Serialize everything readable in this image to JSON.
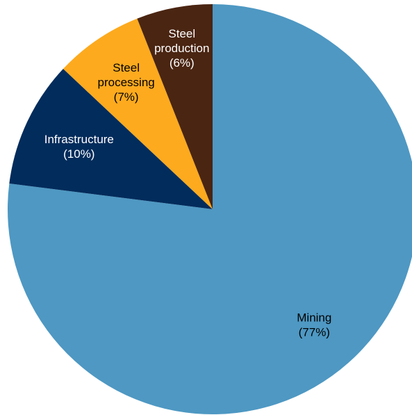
{
  "chart_data": {
    "type": "pie",
    "title": "",
    "slices": [
      {
        "label": "Mining",
        "percent_label": "(77%)",
        "value": 77,
        "color": "#4E98C3",
        "text_color": "#000000"
      },
      {
        "label": "Infrastructure",
        "percent_label": "(10%)",
        "value": 10,
        "color": "#022C5C",
        "text_color": "#FFFFFF"
      },
      {
        "label": "Steel processing",
        "label_lines": [
          "Steel",
          "processing"
        ],
        "percent_label": "(7%)",
        "value": 7,
        "color": "#FDAA1E",
        "text_color": "#000000"
      },
      {
        "label": "Steel production",
        "label_lines": [
          "Steel",
          "production"
        ],
        "percent_label": "(6%)",
        "value": 6,
        "color": "#4A2512",
        "text_color": "#FFFFFF"
      }
    ],
    "legend": "none",
    "start_angle": "12 o'clock",
    "direction": "clockwise"
  }
}
